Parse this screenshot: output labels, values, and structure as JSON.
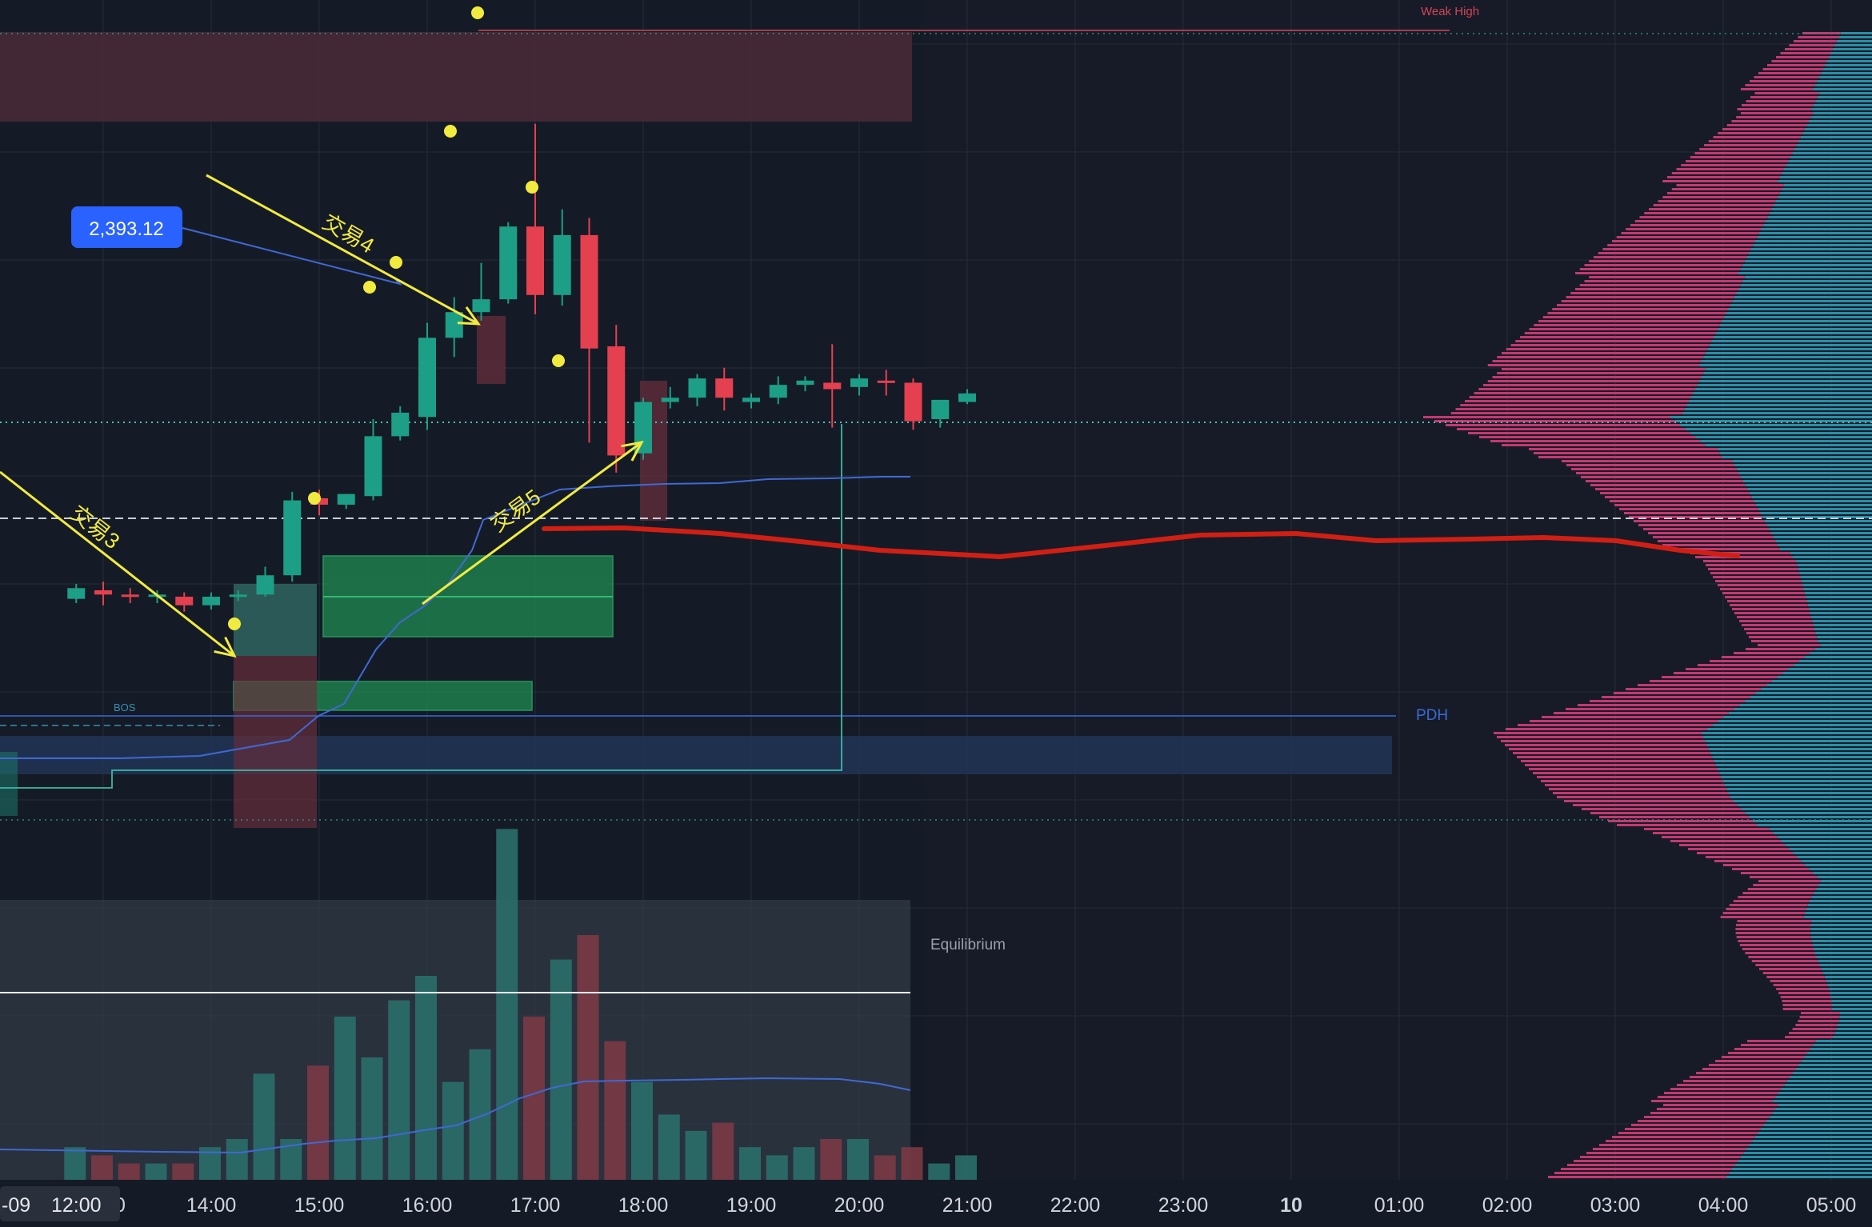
{
  "colors": {
    "background": "#151b26",
    "background_right": "#161b27",
    "grid": "#242c38",
    "bull": "#1c9f86",
    "bear": "#e5404f",
    "supply_zone": "#4a2a37",
    "demand_zone": "#1f8a52",
    "discount_zone": "#22365a",
    "equilibrium_band": "#3a4350",
    "vwap": "#3f69d4",
    "poc_line": "#d11f14",
    "annotation": "#f1eb3f",
    "pdh": "#3a6ad8",
    "weak_high": "#d4445a",
    "trailing": "#3bb9a4",
    "profile_pink": "#c3396f",
    "profile_teal": "#2b8ea7",
    "price_label_bg": "#2962ff",
    "axis_text": "#d1d4dc"
  },
  "labels": {
    "weak_high": "Weak High",
    "pdh": "PDH",
    "bos": "BOS",
    "equilibrium": "Equilibrium",
    "price_tag": "2,393.12",
    "trade_3": "交易3",
    "trade_4": "交易4",
    "trade_5": "交易5",
    "date_prefix": "-09",
    "crosshair_time": "12:00"
  },
  "chart_data": {
    "type": "candlestick",
    "x_ticks": [
      "13:00",
      "14:00",
      "15:00",
      "16:00",
      "17:00",
      "18:00",
      "19:00",
      "20:00",
      "21:00",
      "22:00",
      "23:00",
      "10",
      "01:00",
      "02:00",
      "03:00",
      "04:00",
      "05:00"
    ],
    "x_tick_partial_first": "0",
    "candle_interval": "15m",
    "candles": [
      {
        "t": "12:45",
        "o": 2380.2,
        "h": 2380.9,
        "c": 2380.7,
        "l": 2380.0
      },
      {
        "t": "13:00",
        "o": 2380.6,
        "h": 2381.0,
        "c": 2380.4,
        "l": 2379.9
      },
      {
        "t": "13:15",
        "o": 2380.4,
        "h": 2380.7,
        "c": 2380.3,
        "l": 2380.0
      },
      {
        "t": "13:30",
        "o": 2380.3,
        "h": 2380.6,
        "c": 2380.4,
        "l": 2380.0
      },
      {
        "t": "13:45",
        "o": 2380.3,
        "h": 2380.5,
        "c": 2379.9,
        "l": 2379.6
      },
      {
        "t": "14:00",
        "o": 2379.9,
        "h": 2380.5,
        "c": 2380.3,
        "l": 2379.7
      },
      {
        "t": "14:15",
        "o": 2380.3,
        "h": 2380.6,
        "c": 2380.4,
        "l": 2380.1
      },
      {
        "t": "14:30",
        "o": 2380.4,
        "h": 2381.7,
        "c": 2381.3,
        "l": 2380.3
      },
      {
        "t": "14:45",
        "o": 2381.3,
        "h": 2385.2,
        "c": 2384.8,
        "l": 2381.0
      },
      {
        "t": "15:00",
        "o": 2384.9,
        "h": 2385.3,
        "c": 2384.6,
        "l": 2384.1
      },
      {
        "t": "15:15",
        "o": 2384.6,
        "h": 2385.1,
        "c": 2385.1,
        "l": 2384.4
      },
      {
        "t": "15:30",
        "o": 2385.0,
        "h": 2388.6,
        "c": 2387.8,
        "l": 2384.8
      },
      {
        "t": "15:45",
        "o": 2387.8,
        "h": 2389.2,
        "c": 2388.9,
        "l": 2387.6
      },
      {
        "t": "16:00",
        "o": 2388.7,
        "h": 2393.1,
        "c": 2392.4,
        "l": 2388.1
      },
      {
        "t": "16:15",
        "o": 2392.4,
        "h": 2394.3,
        "c": 2393.6,
        "l": 2391.5
      },
      {
        "t": "16:30",
        "o": 2393.6,
        "h": 2395.9,
        "c": 2394.2,
        "l": 2393.2
      },
      {
        "t": "16:45",
        "o": 2394.2,
        "h": 2397.8,
        "c": 2397.6,
        "l": 2394.0
      },
      {
        "t": "17:00",
        "o": 2397.6,
        "h": 2402.4,
        "c": 2394.4,
        "l": 2393.5
      },
      {
        "t": "17:15",
        "o": 2394.4,
        "h": 2398.4,
        "c": 2397.2,
        "l": 2393.9
      },
      {
        "t": "17:30",
        "o": 2397.2,
        "h": 2398.0,
        "c": 2391.9,
        "l": 2387.5
      },
      {
        "t": "17:45",
        "o": 2392.0,
        "h": 2393.0,
        "c": 2386.9,
        "l": 2386.1
      },
      {
        "t": "18:00",
        "o": 2387.0,
        "h": 2389.6,
        "c": 2389.4,
        "l": 2386.7
      },
      {
        "t": "18:15",
        "o": 2389.4,
        "h": 2390.1,
        "c": 2389.6,
        "l": 2389.1
      },
      {
        "t": "18:30",
        "o": 2389.6,
        "h": 2390.7,
        "c": 2390.5,
        "l": 2389.2
      },
      {
        "t": "18:45",
        "o": 2390.5,
        "h": 2391.0,
        "c": 2389.6,
        "l": 2389.0
      },
      {
        "t": "19:00",
        "o": 2389.4,
        "h": 2389.8,
        "c": 2389.6,
        "l": 2389.1
      },
      {
        "t": "19:15",
        "o": 2389.6,
        "h": 2390.6,
        "c": 2390.2,
        "l": 2389.3
      },
      {
        "t": "19:30",
        "o": 2390.2,
        "h": 2390.6,
        "c": 2390.4,
        "l": 2389.9
      },
      {
        "t": "19:45",
        "o": 2390.3,
        "h": 2392.1,
        "c": 2390.0,
        "l": 2388.2
      },
      {
        "t": "20:00",
        "o": 2390.1,
        "h": 2390.7,
        "c": 2390.5,
        "l": 2389.7
      },
      {
        "t": "20:15",
        "o": 2390.4,
        "h": 2390.9,
        "c": 2390.3,
        "l": 2389.7
      },
      {
        "t": "20:30",
        "o": 2390.3,
        "h": 2390.5,
        "c": 2388.5,
        "l": 2388.1
      },
      {
        "t": "20:45",
        "o": 2388.6,
        "h": 2389.5,
        "c": 2389.5,
        "l": 2388.2
      },
      {
        "t": "21:00",
        "o": 2389.4,
        "h": 2390.0,
        "c": 2389.8,
        "l": 2389.3
      }
    ],
    "volume": [
      4,
      3,
      2,
      2,
      2,
      4,
      5,
      13,
      5,
      14,
      20,
      15,
      22,
      25,
      12,
      16,
      43,
      20,
      27,
      30,
      17,
      12,
      8,
      6,
      7,
      4,
      3,
      4,
      5,
      5,
      3,
      4,
      2,
      3
    ],
    "annotations": [
      "交易3",
      "交易4",
      "交易5"
    ],
    "levels": {
      "weak_high": 2402.4,
      "pdh": 2380.9,
      "price_tag": 2393.12
    }
  }
}
